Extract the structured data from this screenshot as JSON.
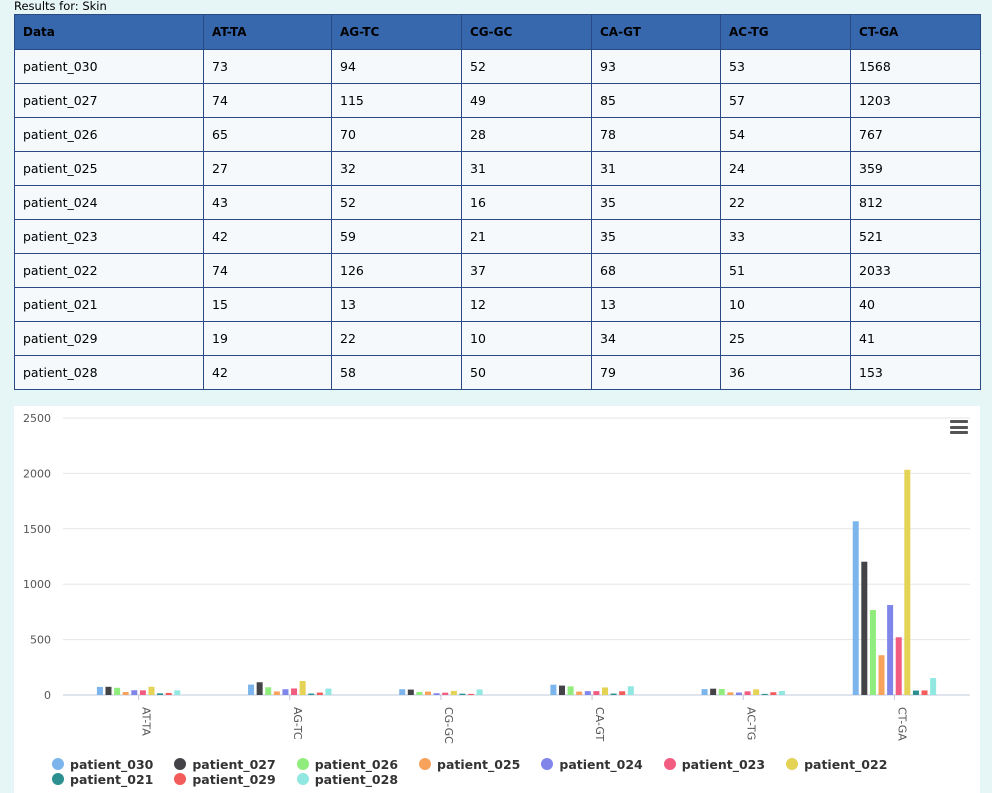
{
  "page": {
    "results_label": "Results for: Skin"
  },
  "table": {
    "columns": [
      "Data",
      "AT-TA",
      "AG-TC",
      "CG-GC",
      "CA-GT",
      "AC-TG",
      "CT-GA"
    ],
    "rows": [
      [
        "patient_030",
        "73",
        "94",
        "52",
        "93",
        "53",
        "1568"
      ],
      [
        "patient_027",
        "74",
        "115",
        "49",
        "85",
        "57",
        "1203"
      ],
      [
        "patient_026",
        "65",
        "70",
        "28",
        "78",
        "54",
        "767"
      ],
      [
        "patient_025",
        "27",
        "32",
        "31",
        "31",
        "24",
        "359"
      ],
      [
        "patient_024",
        "43",
        "52",
        "16",
        "35",
        "22",
        "812"
      ],
      [
        "patient_023",
        "42",
        "59",
        "21",
        "35",
        "33",
        "521"
      ],
      [
        "patient_022",
        "74",
        "126",
        "37",
        "68",
        "51",
        "2033"
      ],
      [
        "patient_021",
        "15",
        "13",
        "12",
        "13",
        "10",
        "40"
      ],
      [
        "patient_029",
        "19",
        "22",
        "10",
        "34",
        "25",
        "41"
      ],
      [
        "patient_028",
        "42",
        "58",
        "50",
        "79",
        "36",
        "153"
      ]
    ]
  },
  "menu": {
    "icon": "hamburger-menu-icon"
  },
  "chart_data": {
    "type": "bar",
    "categories": [
      "AT-TA",
      "AG-TC",
      "CG-GC",
      "CA-GT",
      "AC-TG",
      "CT-GA"
    ],
    "ylim": [
      0,
      2500
    ],
    "yticks": [
      "0",
      "500",
      "1000",
      "1500",
      "2000",
      "2500"
    ],
    "grid": true,
    "legend_position": "bottom",
    "series": [
      {
        "name": "patient_030",
        "color": "#7cb5ec",
        "values": [
          73,
          94,
          52,
          93,
          53,
          1568
        ]
      },
      {
        "name": "patient_027",
        "color": "#434348",
        "values": [
          74,
          115,
          49,
          85,
          57,
          1203
        ]
      },
      {
        "name": "patient_026",
        "color": "#90ed7d",
        "values": [
          65,
          70,
          28,
          78,
          54,
          767
        ]
      },
      {
        "name": "patient_025",
        "color": "#f7a35c",
        "values": [
          27,
          32,
          31,
          31,
          24,
          359
        ]
      },
      {
        "name": "patient_024",
        "color": "#8085e9",
        "values": [
          43,
          52,
          16,
          35,
          22,
          812
        ]
      },
      {
        "name": "patient_023",
        "color": "#f15c80",
        "values": [
          42,
          59,
          21,
          35,
          33,
          521
        ]
      },
      {
        "name": "patient_022",
        "color": "#e4d354",
        "values": [
          74,
          126,
          37,
          68,
          51,
          2033
        ]
      },
      {
        "name": "patient_021",
        "color": "#2b908f",
        "values": [
          15,
          13,
          12,
          13,
          10,
          40
        ]
      },
      {
        "name": "patient_029",
        "color": "#f45b5b",
        "values": [
          19,
          22,
          10,
          34,
          25,
          41
        ]
      },
      {
        "name": "patient_028",
        "color": "#91e8e1",
        "values": [
          42,
          58,
          50,
          79,
          36,
          153
        ]
      }
    ]
  }
}
